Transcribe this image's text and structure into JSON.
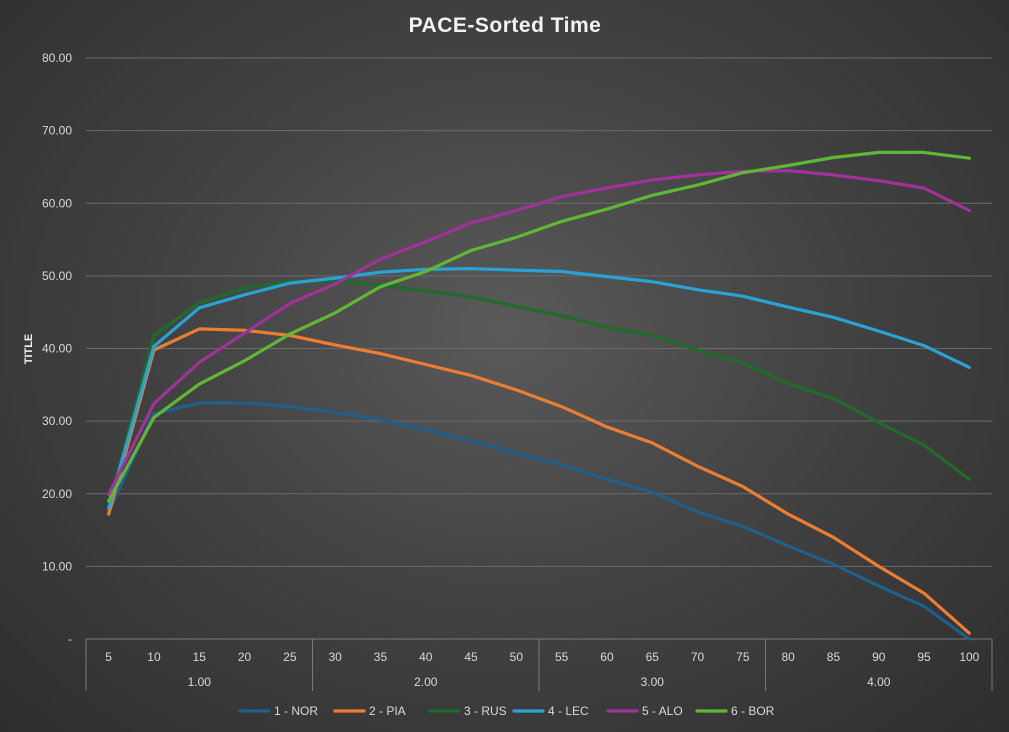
{
  "chart_data": {
    "type": "line",
    "title": "PACE-Sorted Time",
    "ylabel": "TITLE",
    "xlabel": "",
    "ylim": [
      0,
      80
    ],
    "y_ticks": [
      "-",
      "10.00",
      "20.00",
      "30.00",
      "40.00",
      "50.00",
      "60.00",
      "70.00",
      "80.00"
    ],
    "y_tick_values": [
      0,
      10,
      20,
      30,
      40,
      50,
      60,
      70,
      80
    ],
    "categories": [
      "5",
      "10",
      "15",
      "20",
      "25",
      "30",
      "35",
      "40",
      "45",
      "50",
      "55",
      "60",
      "65",
      "70",
      "75",
      "80",
      "85",
      "90",
      "95",
      "100"
    ],
    "groups": [
      {
        "label": "1.00",
        "count": 5
      },
      {
        "label": "2.00",
        "count": 5
      },
      {
        "label": "3.00",
        "count": 5
      },
      {
        "label": "4.00",
        "count": 5
      }
    ],
    "grid": true,
    "legend_position": "bottom",
    "series": [
      {
        "name": "1 - NOR",
        "color": "#1f5f8b",
        "values": [
          17.5,
          31.0,
          32.5,
          32.5,
          32.0,
          31.2,
          30.2,
          28.8,
          27.3,
          25.6,
          24.0,
          22.0,
          20.2,
          17.5,
          15.5,
          12.8,
          10.3,
          7.3,
          4.5,
          0.0
        ]
      },
      {
        "name": "2 - PIA",
        "color": "#ed7d31",
        "values": [
          17.2,
          39.8,
          42.7,
          42.5,
          41.8,
          40.5,
          39.3,
          37.8,
          36.3,
          34.3,
          32.0,
          29.2,
          27.0,
          23.8,
          21.0,
          17.2,
          14.0,
          10.0,
          6.3,
          0.8
        ]
      },
      {
        "name": "3 - RUS",
        "color": "#1e6b2a",
        "values": [
          18.2,
          41.8,
          46.3,
          48.3,
          49.2,
          49.3,
          48.7,
          47.9,
          47.1,
          45.8,
          44.5,
          42.9,
          41.8,
          39.8,
          38.0,
          35.2,
          33.1,
          29.8,
          26.7,
          22.0
        ]
      },
      {
        "name": "4 - LEC",
        "color": "#29a3d6",
        "values": [
          18.0,
          40.3,
          45.6,
          47.4,
          49.0,
          49.7,
          50.5,
          50.9,
          51.0,
          50.8,
          50.6,
          49.9,
          49.2,
          48.1,
          47.2,
          45.7,
          44.3,
          42.4,
          40.4,
          37.4
        ]
      },
      {
        "name": "5 - ALO",
        "color": "#a0329a",
        "values": [
          19.9,
          32.4,
          38.1,
          42.1,
          46.2,
          48.9,
          52.3,
          54.7,
          57.3,
          59.0,
          60.9,
          62.1,
          63.2,
          63.9,
          64.4,
          64.5,
          63.9,
          63.1,
          62.1,
          59.0
        ]
      },
      {
        "name": "6 - BOR",
        "color": "#5fb834",
        "values": [
          19.0,
          30.5,
          35.1,
          38.3,
          42.0,
          44.9,
          48.5,
          50.6,
          53.5,
          55.3,
          57.5,
          59.2,
          61.1,
          62.5,
          64.2,
          65.2,
          66.3,
          67.0,
          67.0,
          66.2
        ]
      }
    ]
  }
}
